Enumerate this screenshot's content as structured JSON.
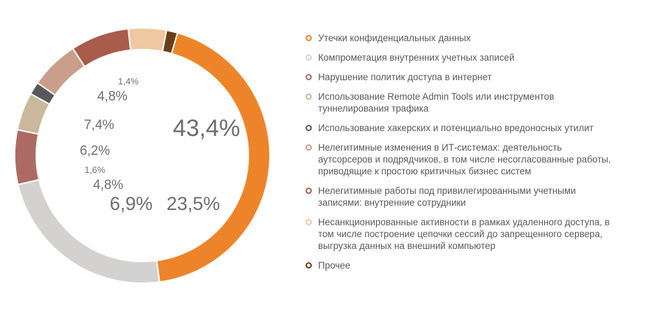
{
  "chart_data": {
    "type": "pie",
    "title": "",
    "slices": [
      {
        "label": "Утечки конфиденциальных данных",
        "value": 43.4,
        "value_label": "43,4%",
        "color": "#ee8429"
      },
      {
        "label": "Компрометация внутренних учетных записей",
        "value": 23.5,
        "value_label": "23,5%",
        "color": "#d3d2d1"
      },
      {
        "label": "Нарушение политик доступа в интернет",
        "value": 6.9,
        "value_label": "6,9%",
        "color": "#ad6a64"
      },
      {
        "label": "Использование Remote Admin Tools или инструментов туннелирования трафика",
        "value": 4.8,
        "value_label": "4,8%",
        "color": "#c9b89d"
      },
      {
        "label": "Использование хакерских и потенциально вредоносных утилит",
        "value": 1.6,
        "value_label": "1,6%",
        "color": "#58595b"
      },
      {
        "label": "Нелегитимные изменения в ИТ-системах: деятельность аутсорсеров и подрядчиков, в том числе несогласованные работы, приводящие к простою критичных бизнес систем",
        "value": 6.2,
        "value_label": "6,2%",
        "color": "#c99e8b"
      },
      {
        "label": "Нелегитимные работы под привилегированными учетными записями: внутренние сотрудники",
        "value": 7.4,
        "value_label": "7,4%",
        "color": "#a95c4b"
      },
      {
        "label": "Несанкционированные активности в рамках удаленного доступа, в том числе построение цепочки сессий до запрещенного сервера, выгрузка данных на внешний компьютер",
        "value": 4.8,
        "value_label": "4,8%",
        "color": "#efc7a0"
      },
      {
        "label": "Прочее",
        "value": 1.4,
        "value_label": "1,4%",
        "color": "#6b3e17"
      }
    ]
  },
  "legend": {
    "items": [
      {
        "text": "Утечки конфиденциальных данных",
        "color": "#ee8429"
      },
      {
        "text": "Компрометация внутренних учетных записей",
        "color": "#d3d2d1"
      },
      {
        "text": "Нарушение политик доступа в интернет",
        "color": "#ad6a64"
      },
      {
        "lines": [
          "Использование Remote Admin Tools или инструментов",
          "туннелирования трафика"
        ],
        "color": "#c9b89d"
      },
      {
        "text": "Использование хакерских и потенциально вредоносных утилит",
        "color": "#58595b"
      },
      {
        "lines": [
          "Нелегитимные изменения в ИТ-системах: деятельность",
          "аутсорсеров и подрядчиков, в том числе несогласованные работы,",
          "приводящие к простою критичных бизнес систем"
        ],
        "color": "#c99e8b"
      },
      {
        "lines": [
          "Нелегитимные работы под привилегированными учетными",
          "записями: внутренние сотрудники"
        ],
        "color": "#a95c4b"
      },
      {
        "lines": [
          "Несанкционированные активности в рамках удаленного доступа, в",
          "том числе построение цепочки сессий до запрещенного сервера,",
          "выгрузка данных на внешний компьютер"
        ],
        "color": "#efc7a0"
      },
      {
        "text": "Прочее",
        "color": "#6b3e17"
      }
    ]
  }
}
